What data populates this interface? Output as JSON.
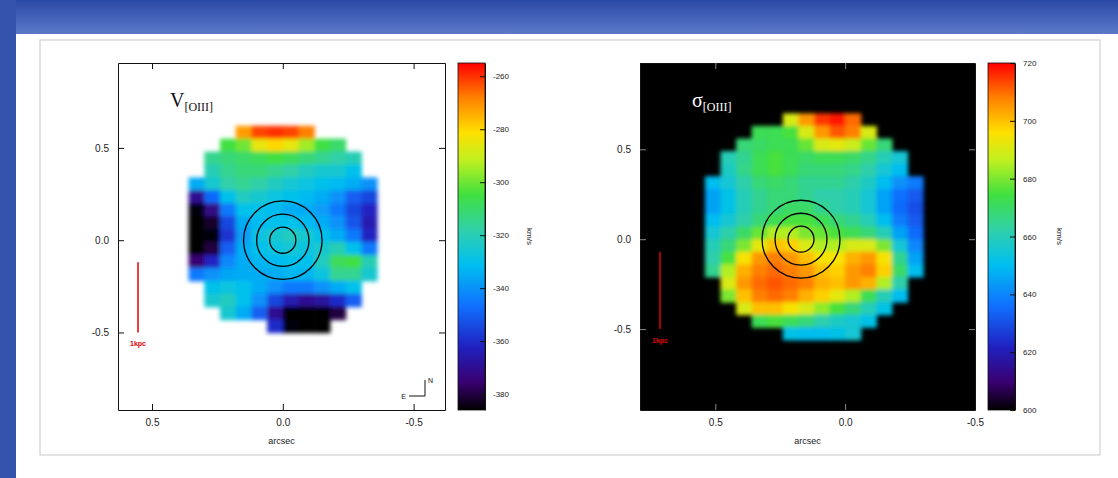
{
  "chart_data": [
    {
      "type": "heatmap",
      "title": "V",
      "title_subscript": "[OIII]",
      "x_label": "arcsec",
      "xlim": [
        0.63,
        -0.62
      ],
      "xticks": [
        0.5,
        {
          "value": 0,
          "label": "0.0"
        },
        -0.5
      ],
      "ylim": [
        -0.92,
        0.96
      ],
      "yticks": [
        0.5,
        {
          "value": 0,
          "label": "0.0"
        },
        -0.5
      ],
      "x": [
        0.33,
        0.27,
        0.21,
        0.15,
        0.09,
        0.03,
        -0.03,
        -0.09,
        -0.15,
        -0.21,
        -0.27,
        -0.33
      ],
      "y": [
        0.585,
        0.515,
        0.445,
        0.375,
        0.305,
        0.235,
        0.165,
        0.095,
        0.025,
        -0.045,
        -0.115,
        -0.185,
        -0.255,
        -0.325,
        -0.395,
        -0.465
      ],
      "cells": [
        [
          null,
          null,
          null,
          -272,
          -262,
          -260,
          -262,
          -268,
          null,
          null,
          null,
          null
        ],
        [
          null,
          null,
          -305,
          -300,
          -285,
          -280,
          -285,
          -295,
          -305,
          -310,
          null,
          null
        ],
        [
          null,
          -315,
          -312,
          -310,
          -308,
          -305,
          -308,
          -312,
          -315,
          -318,
          -320,
          null
        ],
        [
          null,
          -320,
          -315,
          -312,
          -312,
          -315,
          -318,
          -322,
          -325,
          -325,
          -330,
          null
        ],
        [
          -335,
          -325,
          -318,
          -315,
          -318,
          -322,
          -326,
          -328,
          -330,
          -332,
          -335,
          -340
        ],
        [
          -370,
          -348,
          -330,
          -322,
          -325,
          -328,
          -330,
          -332,
          -335,
          -340,
          -350,
          -355
        ],
        [
          -385,
          -372,
          -345,
          -330,
          -330,
          -332,
          -335,
          -335,
          -338,
          -345,
          -355,
          -362
        ],
        [
          -390,
          -382,
          -355,
          -335,
          -332,
          -330,
          -330,
          -332,
          -335,
          -340,
          -352,
          -365
        ],
        [
          -390,
          -385,
          -358,
          -338,
          -328,
          -325,
          -322,
          -325,
          -330,
          -335,
          -345,
          -362
        ],
        [
          -388,
          -380,
          -350,
          -335,
          -330,
          -328,
          -326,
          -328,
          -325,
          -320,
          -330,
          -345
        ],
        [
          -375,
          -362,
          -342,
          -335,
          -333,
          -332,
          -330,
          -330,
          -322,
          -308,
          -305,
          -320
        ],
        [
          -345,
          -340,
          -336,
          -335,
          -335,
          -335,
          -333,
          -333,
          -328,
          -315,
          -315,
          -325
        ],
        [
          null,
          -330,
          -328,
          -330,
          -335,
          -340,
          -345,
          -345,
          -340,
          -335,
          -330,
          null
        ],
        [
          null,
          -325,
          -322,
          -330,
          -340,
          -355,
          -365,
          -370,
          -368,
          -360,
          -350,
          null
        ],
        [
          null,
          null,
          -325,
          -335,
          -350,
          -370,
          -388,
          -392,
          -392,
          -380,
          null,
          null
        ],
        [
          null,
          null,
          null,
          null,
          null,
          -360,
          -385,
          -392,
          -390,
          null,
          null,
          null
        ]
      ],
      "colorbar": {
        "label": "km/s",
        "range": [
          -386,
          -255
        ],
        "ticks": [
          -260,
          -280,
          -300,
          -320,
          -340,
          -360,
          -380
        ]
      },
      "contour_center": [
        0,
        0
      ],
      "contour_radii": [
        0.05,
        0.1,
        0.15
      ],
      "scale_bar": {
        "label": "1kpc",
        "from": -0.5,
        "to": -0.12
      },
      "compass": {
        "north": "N",
        "east": "E"
      }
    },
    {
      "type": "heatmap",
      "title": "σ",
      "title_subscript": "[OIII]",
      "x_label": "arcsec",
      "xlim": [
        0.79,
        -0.5
      ],
      "xticks": [
        0.5,
        {
          "value": 0,
          "label": "0.0"
        },
        -0.5
      ],
      "ylim": [
        -0.95,
        0.98
      ],
      "yticks": [
        0.5,
        {
          "value": 0,
          "label": "0.0"
        },
        -0.5
      ],
      "x": [
        0.51,
        0.45,
        0.39,
        0.33,
        0.27,
        0.21,
        0.15,
        0.09,
        0.03,
        -0.03,
        -0.09,
        -0.15,
        -0.21,
        -0.27
      ],
      "y": [
        0.665,
        0.595,
        0.525,
        0.455,
        0.385,
        0.315,
        0.245,
        0.175,
        0.105,
        0.035,
        -0.035,
        -0.105,
        -0.175,
        -0.245,
        -0.315,
        -0.385,
        -0.455,
        -0.525
      ],
      "cells": [
        [
          null,
          null,
          null,
          null,
          null,
          690,
          705,
          715,
          718,
          710,
          null,
          null,
          null,
          null
        ],
        [
          null,
          null,
          null,
          672,
          672,
          675,
          690,
          705,
          712,
          708,
          690,
          null,
          null,
          null
        ],
        [
          null,
          null,
          668,
          670,
          672,
          672,
          678,
          690,
          692,
          688,
          678,
          668,
          null,
          null
        ],
        [
          null,
          660,
          665,
          672,
          675,
          672,
          670,
          672,
          672,
          670,
          666,
          660,
          655,
          null
        ],
        [
          null,
          658,
          666,
          672,
          675,
          672,
          668,
          668,
          668,
          666,
          662,
          655,
          650,
          null
        ],
        [
          650,
          655,
          662,
          668,
          670,
          668,
          665,
          665,
          665,
          662,
          658,
          650,
          642,
          638
        ],
        [
          645,
          652,
          660,
          665,
          668,
          668,
          665,
          662,
          662,
          660,
          655,
          645,
          636,
          632
        ],
        [
          645,
          652,
          660,
          665,
          668,
          670,
          670,
          665,
          662,
          660,
          655,
          645,
          635,
          630
        ],
        [
          650,
          655,
          662,
          668,
          672,
          675,
          675,
          672,
          668,
          665,
          660,
          650,
          638,
          632
        ],
        [
          655,
          662,
          670,
          678,
          685,
          685,
          680,
          678,
          675,
          672,
          668,
          660,
          645,
          635
        ],
        [
          660,
          668,
          680,
          692,
          700,
          698,
          690,
          685,
          685,
          690,
          690,
          680,
          655,
          640
        ],
        [
          662,
          675,
          695,
          705,
          708,
          705,
          700,
          695,
          695,
          702,
          705,
          695,
          665,
          645
        ],
        [
          665,
          685,
          702,
          708,
          710,
          708,
          705,
          700,
          698,
          705,
          708,
          698,
          670,
          650
        ],
        [
          null,
          690,
          705,
          710,
          712,
          710,
          708,
          702,
          700,
          705,
          702,
          685,
          662,
          null
        ],
        [
          null,
          680,
          700,
          708,
          710,
          708,
          702,
          698,
          692,
          685,
          672,
          660,
          650,
          null
        ],
        [
          null,
          null,
          690,
          700,
          700,
          695,
          690,
          682,
          675,
          668,
          660,
          652,
          null,
          null
        ],
        [
          null,
          null,
          null,
          672,
          675,
          672,
          668,
          662,
          658,
          655,
          652,
          null,
          null,
          null
        ],
        [
          null,
          null,
          null,
          null,
          null,
          652,
          650,
          650,
          652,
          655,
          null,
          null,
          null,
          null
        ]
      ],
      "colorbar": {
        "label": "km/s",
        "range": [
          600,
          720
        ],
        "ticks": [
          600,
          620,
          640,
          660,
          680,
          700,
          720
        ]
      },
      "contour_center": [
        0.17,
        0
      ],
      "contour_radii": [
        0.05,
        0.1,
        0.15
      ],
      "scale_bar": {
        "label": "1kpc",
        "from": -0.5,
        "to": -0.07
      }
    }
  ]
}
